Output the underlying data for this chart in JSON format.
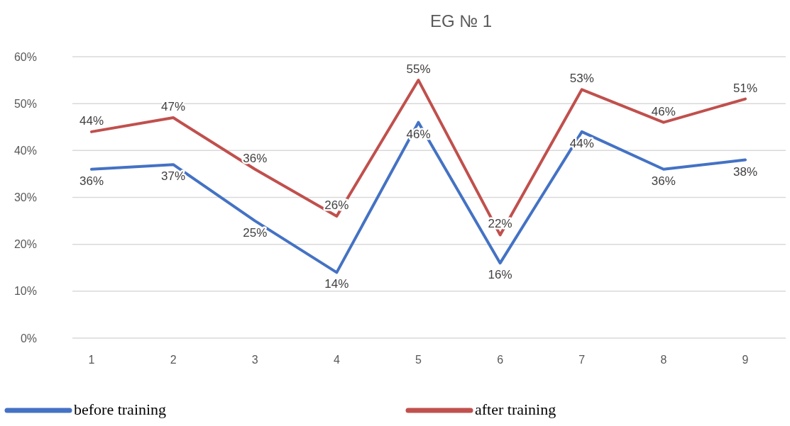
{
  "chart_data": {
    "type": "line",
    "title": "EG № 1",
    "categories": [
      "1",
      "2",
      "3",
      "4",
      "5",
      "6",
      "7",
      "8",
      "9"
    ],
    "series": [
      {
        "name": "before training",
        "color": "#4472c4",
        "values": [
          36,
          37,
          25,
          14,
          46,
          16,
          44,
          36,
          38
        ],
        "value_labels": [
          "36%",
          "37%",
          "25%",
          "14%",
          "46%",
          "16%",
          "44%",
          "36%",
          "38%"
        ]
      },
      {
        "name": "after training",
        "color": "#c0504d",
        "values": [
          44,
          47,
          36,
          26,
          55,
          22,
          53,
          46,
          51
        ],
        "value_labels": [
          "44%",
          "47%",
          "36%",
          "26%",
          "55%",
          "22%",
          "53%",
          "46%",
          "51%"
        ]
      }
    ],
    "ylim": [
      0,
      60
    ],
    "yticks": [
      {
        "value": 0,
        "label": "0%"
      },
      {
        "value": 10,
        "label": "10%"
      },
      {
        "value": 20,
        "label": "20%"
      },
      {
        "value": 30,
        "label": "30%"
      },
      {
        "value": 40,
        "label": "40%"
      },
      {
        "value": 50,
        "label": "50%"
      },
      {
        "value": 60,
        "label": "60%"
      }
    ],
    "grid": "y",
    "legend": "bottom",
    "marker": "none",
    "line_style": "solid"
  }
}
